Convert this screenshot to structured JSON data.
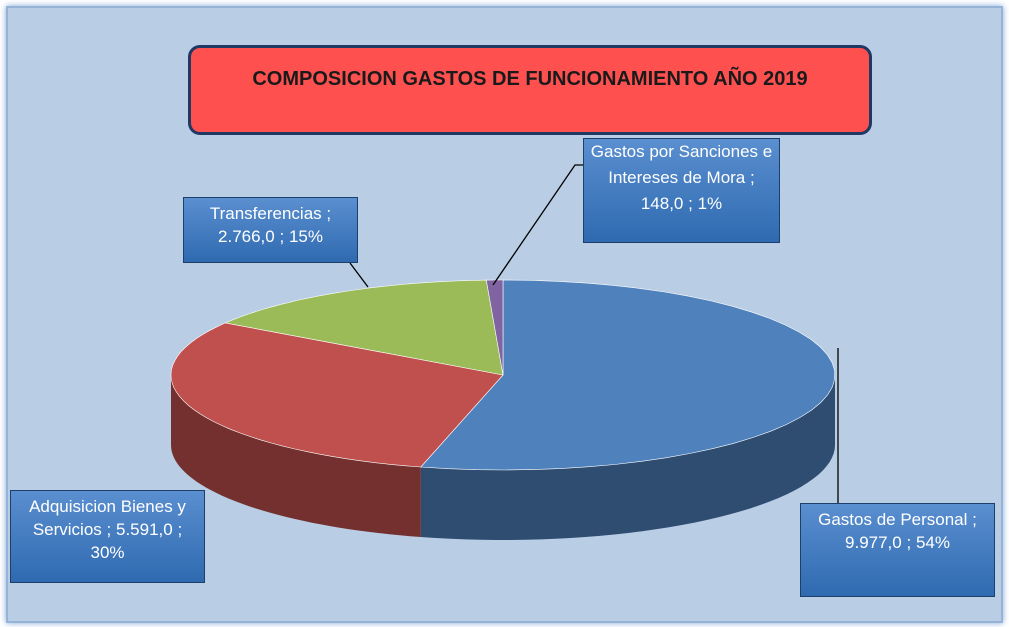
{
  "chart_data": {
    "type": "pie3d",
    "title": "COMPOSICION GASTOS DE FUNCIONAMIENTO AÑO 2019",
    "categories": [
      "Gastos de Personal",
      "Adquisicion Bienes y Servicios",
      "Transferencias",
      "Gastos por Sanciones e Intereses de Mora"
    ],
    "values": [
      9977,
      5591,
      2766,
      148
    ],
    "value_labels": [
      "9.977,0",
      "5.591,0",
      "2.766,0",
      "148,0"
    ],
    "percent_labels": [
      "54%",
      "30%",
      "15%",
      "1%"
    ],
    "label_separator": ";",
    "colors": [
      "#4f81bd",
      "#c0504d",
      "#9bbb59",
      "#8064a2"
    ]
  }
}
